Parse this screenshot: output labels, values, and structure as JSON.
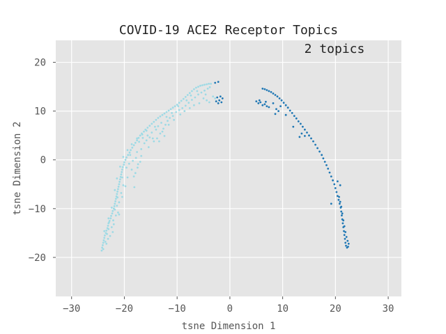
{
  "chart_data": {
    "type": "scatter",
    "title": "COVID-19 ACE2 Receptor Topics",
    "annotation": "2 topics",
    "xlabel": "tsne Dimension 1",
    "ylabel": "tsne Dimension 2",
    "xlim": [
      -33,
      32.5
    ],
    "ylim": [
      -28,
      24.5
    ],
    "xticks": [
      -30,
      -20,
      -10,
      0,
      10,
      20,
      30
    ],
    "yticks": [
      -20,
      -10,
      0,
      10,
      20
    ],
    "xtick_labels": [
      "−30",
      "−20",
      "−10",
      "0",
      "10",
      "20",
      "30"
    ],
    "ytick_labels": [
      "−20",
      "−10",
      "0",
      "10",
      "20"
    ],
    "grid": true,
    "background": "#e5e5e5",
    "series": [
      {
        "color": "#9edae5",
        "points": [
          [
            -24.3,
            -18.6
          ],
          [
            -24.2,
            -18.0
          ],
          [
            -24.1,
            -17.5
          ],
          [
            -24.0,
            -17.0
          ],
          [
            -23.9,
            -16.5
          ],
          [
            -23.8,
            -16.0
          ],
          [
            -23.7,
            -15.5
          ],
          [
            -23.5,
            -15.0
          ],
          [
            -23.4,
            -14.5
          ],
          [
            -23.2,
            -14.0
          ],
          [
            -23.1,
            -13.5
          ],
          [
            -23.0,
            -13.0
          ],
          [
            -22.8,
            -12.5
          ],
          [
            -22.6,
            -12.0
          ],
          [
            -22.5,
            -11.5
          ],
          [
            -22.3,
            -11.0
          ],
          [
            -22.2,
            -10.5
          ],
          [
            -22.0,
            -10.0
          ],
          [
            -21.9,
            -9.5
          ],
          [
            -21.8,
            -9.0
          ],
          [
            -21.7,
            -8.5
          ],
          [
            -21.6,
            -8.0
          ],
          [
            -21.5,
            -7.5
          ],
          [
            -21.4,
            -7.0
          ],
          [
            -21.3,
            -6.5
          ],
          [
            -21.2,
            -6.0
          ],
          [
            -21.1,
            -5.5
          ],
          [
            -21.0,
            -5.0
          ],
          [
            -20.9,
            -4.5
          ],
          [
            -20.8,
            -4.0
          ],
          [
            -20.7,
            -3.5
          ],
          [
            -20.6,
            -3.0
          ],
          [
            -20.5,
            -2.5
          ],
          [
            -20.4,
            -2.0
          ],
          [
            -20.3,
            -1.5
          ],
          [
            -20.1,
            -1.0
          ],
          [
            -20.0,
            -0.5
          ],
          [
            -19.8,
            0.0
          ],
          [
            -19.6,
            0.5
          ],
          [
            -19.3,
            1.0
          ],
          [
            -19.0,
            1.5
          ],
          [
            -18.8,
            2.0
          ],
          [
            -18.5,
            2.5
          ],
          [
            -18.2,
            3.0
          ],
          [
            -17.9,
            3.5
          ],
          [
            -17.6,
            4.0
          ],
          [
            -17.3,
            4.5
          ],
          [
            -17.0,
            5.0
          ],
          [
            -16.7,
            5.4
          ],
          [
            -16.3,
            5.8
          ],
          [
            -16.0,
            6.2
          ],
          [
            -15.6,
            6.6
          ],
          [
            -15.2,
            7.0
          ],
          [
            -14.8,
            7.4
          ],
          [
            -14.4,
            7.8
          ],
          [
            -14.0,
            8.2
          ],
          [
            -13.6,
            8.6
          ],
          [
            -13.2,
            8.9
          ],
          [
            -12.8,
            9.2
          ],
          [
            -12.4,
            9.5
          ],
          [
            -12.0,
            9.8
          ],
          [
            -11.6,
            10.1
          ],
          [
            -11.2,
            10.4
          ],
          [
            -10.8,
            10.7
          ],
          [
            -10.4,
            11.0
          ],
          [
            -10.0,
            11.3
          ],
          [
            -9.6,
            11.7
          ],
          [
            -9.2,
            12.1
          ],
          [
            -8.8,
            12.5
          ],
          [
            -8.4,
            12.9
          ],
          [
            -8.0,
            13.3
          ],
          [
            -7.6,
            13.7
          ],
          [
            -7.2,
            14.1
          ],
          [
            -6.8,
            14.5
          ],
          [
            -6.4,
            14.8
          ],
          [
            -6.0,
            15.0
          ],
          [
            -5.6,
            15.2
          ],
          [
            -5.2,
            15.3
          ],
          [
            -4.8,
            15.4
          ],
          [
            -4.4,
            15.5
          ],
          [
            -4.0,
            15.6
          ],
          [
            -3.6,
            15.6
          ],
          [
            -24.0,
            -18.3
          ],
          [
            -23.6,
            -16.8
          ],
          [
            -23.3,
            -15.2
          ],
          [
            -23.0,
            -14.2
          ],
          [
            -22.9,
            -12.8
          ],
          [
            -22.4,
            -13.8
          ],
          [
            -22.1,
            -12.4
          ],
          [
            -21.8,
            -10.2
          ],
          [
            -21.4,
            -9.4
          ],
          [
            -21.0,
            -8.7
          ],
          [
            -21.3,
            -7.7
          ],
          [
            -20.6,
            -6.8
          ],
          [
            -20.2,
            -5.2
          ],
          [
            -21.6,
            -11.4
          ],
          [
            -22.7,
            -15.6
          ],
          [
            -23.4,
            -17.2
          ],
          [
            -22.0,
            -13.2
          ],
          [
            -21.2,
            -10.8
          ],
          [
            -20.4,
            -3.6
          ],
          [
            -19.6,
            -1.6
          ],
          [
            -19.1,
            -0.8
          ],
          [
            -18.4,
            -0.2
          ],
          [
            -18.9,
            1.0
          ],
          [
            -17.8,
            0.4
          ],
          [
            -17.5,
            -1.6
          ],
          [
            -17.9,
            -2.7
          ],
          [
            -18.2,
            -3.4
          ],
          [
            -17.0,
            -0.4
          ],
          [
            -17.6,
            1.6
          ],
          [
            -16.8,
            2.2
          ],
          [
            -16.2,
            3.4
          ],
          [
            -15.8,
            4.0
          ],
          [
            -15.2,
            4.6
          ],
          [
            -14.8,
            5.6
          ],
          [
            -14.0,
            6.2
          ],
          [
            -13.6,
            6.9
          ],
          [
            -15.6,
            5.0
          ],
          [
            -16.5,
            4.5
          ],
          [
            -17.2,
            3.7
          ],
          [
            -14.4,
            3.8
          ],
          [
            -13.8,
            4.4
          ],
          [
            -13.2,
            5.4
          ],
          [
            -12.6,
            6.4
          ],
          [
            -12.2,
            7.2
          ],
          [
            -11.8,
            8.0
          ],
          [
            -11.4,
            8.6
          ],
          [
            -10.8,
            9.0
          ],
          [
            -10.2,
            9.8
          ],
          [
            -9.6,
            10.2
          ],
          [
            -9.0,
            10.6
          ],
          [
            -8.4,
            11.1
          ],
          [
            -7.8,
            11.7
          ],
          [
            -7.2,
            12.3
          ],
          [
            -6.6,
            12.8
          ],
          [
            -6.0,
            13.4
          ],
          [
            -5.4,
            13.8
          ],
          [
            -4.8,
            14.2
          ],
          [
            -4.2,
            14.6
          ],
          [
            -3.8,
            14.9
          ],
          [
            -5.0,
            12.6
          ],
          [
            -4.4,
            12.2
          ],
          [
            -3.9,
            11.8
          ],
          [
            -5.8,
            11.6
          ],
          [
            -6.8,
            11.2
          ],
          [
            -7.6,
            10.6
          ],
          [
            -8.6,
            10.0
          ],
          [
            -9.4,
            9.3
          ],
          [
            -10.6,
            8.2
          ],
          [
            -11.6,
            7.2
          ],
          [
            -12.8,
            5.8
          ],
          [
            -14.6,
            4.4
          ],
          [
            -13.4,
            3.8
          ],
          [
            -12.4,
            4.9
          ],
          [
            -15.4,
            2.6
          ],
          [
            -16.8,
            0.8
          ],
          [
            -17.4,
            -0.9
          ],
          [
            -18.6,
            -2.0
          ],
          [
            -19.4,
            -3.6
          ],
          [
            -19.8,
            -5.4
          ],
          [
            -18.1,
            -5.6
          ],
          [
            -20.4,
            -7.6
          ],
          [
            -21.0,
            -11.2
          ],
          [
            -22.2,
            -14.8
          ],
          [
            -23.1,
            -16.2
          ],
          [
            -4.6,
            13.4
          ],
          [
            -3.2,
            13.0
          ],
          [
            -2.8,
            12.6
          ],
          [
            -6.2,
            14.1
          ],
          [
            -7.4,
            13.2
          ],
          [
            -8.2,
            12.2
          ],
          [
            -9.8,
            11.0
          ],
          [
            -11.0,
            9.6
          ],
          [
            -12.0,
            8.8
          ],
          [
            -13.0,
            7.6
          ],
          [
            -14.2,
            6.8
          ],
          [
            -15.8,
            6.0
          ],
          [
            -16.6,
            5.2
          ],
          [
            -17.6,
            4.4
          ],
          [
            -18.6,
            3.2
          ],
          [
            -19.4,
            2.0
          ],
          [
            -20.2,
            0.6
          ],
          [
            -20.8,
            -1.4
          ],
          [
            -21.4,
            -3.8
          ],
          [
            -21.8,
            -6.2
          ],
          [
            -22.4,
            -9.8
          ],
          [
            -23.0,
            -12.0
          ],
          [
            -23.8,
            -14.6
          ]
        ]
      },
      {
        "color": "#1f77b4",
        "points": [
          [
            6.2,
            14.6
          ],
          [
            6.6,
            14.5
          ],
          [
            7.0,
            14.3
          ],
          [
            7.4,
            14.1
          ],
          [
            7.8,
            13.9
          ],
          [
            8.2,
            13.6
          ],
          [
            8.6,
            13.3
          ],
          [
            9.0,
            13.0
          ],
          [
            9.4,
            12.6
          ],
          [
            9.8,
            12.2
          ],
          [
            10.2,
            11.7
          ],
          [
            10.6,
            11.2
          ],
          [
            11.0,
            10.7
          ],
          [
            11.4,
            10.1
          ],
          [
            11.8,
            9.6
          ],
          [
            12.2,
            9.0
          ],
          [
            12.6,
            8.5
          ],
          [
            13.0,
            7.9
          ],
          [
            13.4,
            7.4
          ],
          [
            13.8,
            6.8
          ],
          [
            14.2,
            6.2
          ],
          [
            14.6,
            5.6
          ],
          [
            15.0,
            5.0
          ],
          [
            15.4,
            4.4
          ],
          [
            15.8,
            3.8
          ],
          [
            16.2,
            3.1
          ],
          [
            16.6,
            2.4
          ],
          [
            17.0,
            1.7
          ],
          [
            17.4,
            1.0
          ],
          [
            17.7,
            0.3
          ],
          [
            18.0,
            -0.4
          ],
          [
            18.3,
            -1.1
          ],
          [
            18.6,
            -1.8
          ],
          [
            18.9,
            -2.6
          ],
          [
            19.2,
            -3.4
          ],
          [
            19.5,
            -4.2
          ],
          [
            19.8,
            -5.0
          ],
          [
            20.0,
            -5.8
          ],
          [
            20.2,
            -6.6
          ],
          [
            20.4,
            -7.4
          ],
          [
            20.6,
            -8.2
          ],
          [
            20.8,
            -9.0
          ],
          [
            21.0,
            -9.8
          ],
          [
            21.1,
            -10.6
          ],
          [
            21.2,
            -11.4
          ],
          [
            21.3,
            -12.2
          ],
          [
            21.4,
            -13.0
          ],
          [
            21.5,
            -13.8
          ],
          [
            21.6,
            -14.6
          ],
          [
            21.7,
            -15.4
          ],
          [
            21.8,
            -16.2
          ],
          [
            21.9,
            -17.0
          ],
          [
            22.0,
            -17.6
          ],
          [
            22.2,
            -18.0
          ],
          [
            22.4,
            -17.8
          ],
          [
            22.5,
            -17.2
          ],
          [
            22.3,
            -16.6
          ],
          [
            22.1,
            -15.8
          ],
          [
            21.9,
            -14.8
          ],
          [
            21.7,
            -13.6
          ],
          [
            21.5,
            -12.4
          ],
          [
            21.3,
            -11.0
          ],
          [
            21.1,
            -9.6
          ],
          [
            20.9,
            -8.6
          ],
          [
            20.7,
            -7.6
          ],
          [
            5.0,
            12.0
          ],
          [
            5.4,
            11.6
          ],
          [
            5.8,
            11.8
          ],
          [
            6.2,
            11.2
          ],
          [
            6.6,
            11.4
          ],
          [
            7.0,
            11.0
          ],
          [
            5.6,
            12.2
          ],
          [
            6.8,
            11.9
          ],
          [
            7.4,
            10.8
          ],
          [
            8.2,
            11.6
          ],
          [
            8.8,
            10.4
          ],
          [
            9.2,
            10.0
          ],
          [
            8.6,
            9.4
          ],
          [
            9.6,
            11.0
          ],
          [
            10.6,
            9.2
          ],
          [
            12.0,
            6.8
          ],
          [
            13.2,
            4.7
          ],
          [
            14.2,
            4.9
          ],
          [
            13.6,
            5.4
          ],
          [
            19.2,
            -9.0
          ],
          [
            20.4,
            -4.4
          ],
          [
            20.9,
            -5.2
          ],
          [
            -2.2,
            16.0
          ],
          [
            -2.4,
            12.8
          ],
          [
            -2.0,
            12.2
          ],
          [
            -2.6,
            12.0
          ],
          [
            -1.8,
            13.0
          ],
          [
            -1.4,
            12.6
          ],
          [
            -2.2,
            11.6
          ],
          [
            -1.6,
            11.8
          ],
          [
            -2.8,
            15.8
          ]
        ]
      }
    ]
  }
}
